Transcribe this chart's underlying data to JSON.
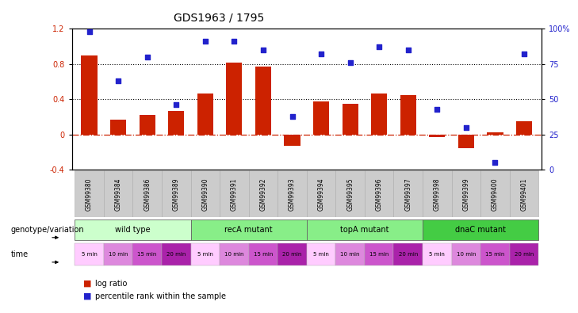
{
  "title": "GDS1963 / 1795",
  "samples": [
    "GSM99380",
    "GSM99384",
    "GSM99386",
    "GSM99389",
    "GSM99390",
    "GSM99391",
    "GSM99392",
    "GSM99393",
    "GSM99394",
    "GSM99395",
    "GSM99396",
    "GSM99397",
    "GSM99398",
    "GSM99399",
    "GSM99400",
    "GSM99401"
  ],
  "log_ratio": [
    0.9,
    0.17,
    0.22,
    0.27,
    0.47,
    0.82,
    0.77,
    -0.13,
    0.38,
    0.35,
    0.47,
    0.45,
    -0.03,
    -0.15,
    0.03,
    0.15
  ],
  "percentile": [
    98,
    63,
    80,
    46,
    91,
    91,
    85,
    38,
    82,
    76,
    87,
    85,
    43,
    30,
    5,
    82
  ],
  "bar_color": "#cc2200",
  "dot_color": "#2222cc",
  "hline_color": "#cc2200",
  "ylim_left": [
    -0.4,
    1.2
  ],
  "ylim_right": [
    0,
    100
  ],
  "yticks_left": [
    -0.4,
    0.0,
    0.4,
    0.8,
    1.2
  ],
  "yticks_right": [
    0,
    25,
    50,
    75,
    100
  ],
  "yticklabels_right": [
    "0",
    "25",
    "50",
    "75",
    "100%"
  ],
  "background_color": "#ffffff",
  "groups": [
    {
      "label": "wild type",
      "start": 0,
      "end": 4,
      "color": "#ccffcc"
    },
    {
      "label": "recA mutant",
      "start": 4,
      "end": 8,
      "color": "#88ee88"
    },
    {
      "label": "topA mutant",
      "start": 8,
      "end": 12,
      "color": "#88ee88"
    },
    {
      "label": "dnaC mutant",
      "start": 12,
      "end": 16,
      "color": "#44cc44"
    }
  ],
  "times": [
    "5 min",
    "10 min",
    "15 min",
    "20 min",
    "5 min",
    "10 min",
    "15 min",
    "20 min",
    "5 min",
    "10 min",
    "15 min",
    "20 min",
    "5 min",
    "10 min",
    "15 min",
    "20 min"
  ],
  "pink_shades": [
    "#ffccff",
    "#dd88dd",
    "#cc55cc",
    "#aa22aa"
  ],
  "legend_bar_label": "log ratio",
  "legend_dot_label": "percentile rank within the sample",
  "xlabel_genotype": "genotype/variation",
  "xlabel_time": "time",
  "title_fontsize": 10,
  "tick_fontsize": 7,
  "sample_fontsize": 5.5,
  "group_fontsize": 7,
  "time_fontsize": 5,
  "legend_fontsize": 7,
  "label_fontsize": 7
}
